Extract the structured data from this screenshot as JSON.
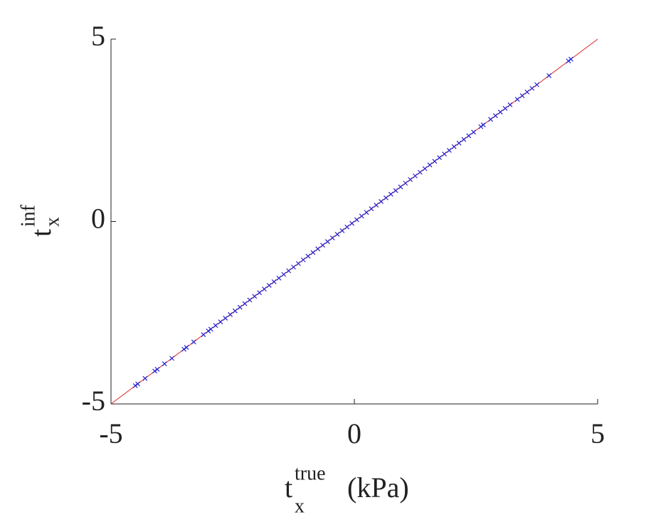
{
  "chart_data": {
    "type": "scatter",
    "xlabel": {
      "base": "t",
      "sub": "x",
      "sup": "true",
      "unit": "(kPa)"
    },
    "ylabel": {
      "base": "t",
      "sub": "x",
      "sup": "inf"
    },
    "xlim": [
      -5,
      5
    ],
    "ylim": [
      -5,
      5
    ],
    "xticks": [
      -5,
      0,
      5
    ],
    "yticks": [
      -5,
      0,
      5
    ],
    "grid": false,
    "reference_line": {
      "x": [
        -5,
        5
      ],
      "values": [
        -5,
        5
      ],
      "color": "#e02020"
    },
    "series": [
      {
        "color": "#2020d0",
        "marker": "x",
        "x": [
          -4.5,
          -4.45,
          -4.3,
          -4.1,
          -4.05,
          -3.9,
          -3.75,
          -3.5,
          -3.45,
          -3.3,
          -3.1,
          -3.0,
          -2.95,
          -2.85,
          -2.75,
          -2.65,
          -2.55,
          -2.45,
          -2.35,
          -2.25,
          -2.15,
          -2.05,
          -1.95,
          -1.85,
          -1.75,
          -1.65,
          -1.55,
          -1.45,
          -1.35,
          -1.25,
          -1.15,
          -1.05,
          -0.95,
          -0.85,
          -0.75,
          -0.65,
          -0.55,
          -0.45,
          -0.35,
          -0.25,
          -0.15,
          -0.05,
          0.05,
          0.15,
          0.25,
          0.35,
          0.45,
          0.55,
          0.65,
          0.75,
          0.85,
          0.95,
          1.05,
          1.15,
          1.25,
          1.35,
          1.45,
          1.55,
          1.65,
          1.75,
          1.85,
          1.95,
          2.05,
          2.15,
          2.25,
          2.35,
          2.45,
          2.6,
          2.65,
          2.8,
          2.9,
          3.0,
          3.1,
          3.2,
          3.35,
          3.45,
          3.55,
          3.65,
          3.75,
          4.0,
          4.4,
          4.45
        ],
        "values": [
          -4.5,
          -4.45,
          -4.3,
          -4.1,
          -4.05,
          -3.9,
          -3.75,
          -3.5,
          -3.45,
          -3.3,
          -3.1,
          -3.0,
          -2.95,
          -2.85,
          -2.75,
          -2.65,
          -2.55,
          -2.45,
          -2.35,
          -2.25,
          -2.15,
          -2.05,
          -1.95,
          -1.85,
          -1.75,
          -1.65,
          -1.55,
          -1.45,
          -1.35,
          -1.25,
          -1.15,
          -1.05,
          -0.95,
          -0.85,
          -0.75,
          -0.65,
          -0.55,
          -0.45,
          -0.35,
          -0.25,
          -0.15,
          -0.05,
          0.05,
          0.15,
          0.25,
          0.35,
          0.45,
          0.55,
          0.65,
          0.75,
          0.85,
          0.95,
          1.05,
          1.15,
          1.25,
          1.35,
          1.45,
          1.55,
          1.65,
          1.75,
          1.85,
          1.95,
          2.05,
          2.15,
          2.25,
          2.35,
          2.45,
          2.6,
          2.65,
          2.8,
          2.9,
          3.0,
          3.1,
          3.2,
          3.35,
          3.45,
          3.55,
          3.65,
          3.75,
          4.0,
          4.4,
          4.45
        ]
      }
    ]
  }
}
